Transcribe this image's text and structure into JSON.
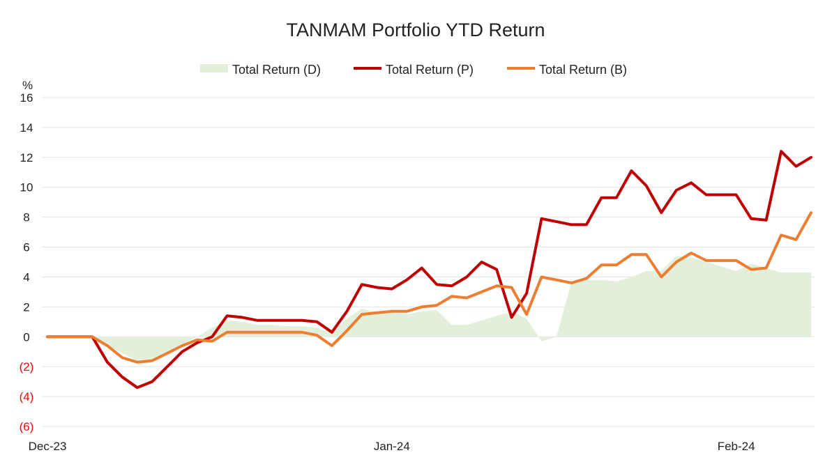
{
  "chart_data": {
    "type": "line",
    "title": "TANMAM Portfolio YTD Return",
    "ylabel": "%",
    "ylim": [
      -6,
      16
    ],
    "yticks": [
      -6,
      -4,
      -2,
      0,
      2,
      4,
      6,
      8,
      10,
      12,
      14,
      16
    ],
    "ytick_labels": [
      "(6)",
      "(4)",
      "(2)",
      "0",
      "2",
      "4",
      "6",
      "8",
      "10",
      "12",
      "14",
      "16"
    ],
    "negative_tick_color": "#ff0000",
    "grid": true,
    "legend_position": "top-center",
    "x_ticks": [
      {
        "label": "Dec-23",
        "index": 0
      },
      {
        "label": "Jan-24",
        "index": 23
      },
      {
        "label": "Feb-24",
        "index": 46
      }
    ],
    "x_count": 52,
    "series": [
      {
        "name": "Total Return (D)",
        "type": "area",
        "color": "#e2efda",
        "values": [
          0,
          0,
          0,
          0,
          -0.6,
          -1.1,
          -1.6,
          -1.5,
          -1.0,
          -0.5,
          0,
          0.6,
          1.1,
          1.0,
          0.8,
          0.8,
          0.7,
          0.7,
          0.6,
          0.3,
          1.2,
          1.9,
          1.6,
          1.6,
          1.5,
          1.7,
          1.8,
          0.8,
          0.8,
          1.1,
          1.4,
          1.7,
          1.2,
          -0.3,
          0,
          3.7,
          3.8,
          3.8,
          3.7,
          4.0,
          4.4,
          4.4,
          5.4,
          5.3,
          5.0,
          4.7,
          4.4,
          4.9,
          4.6,
          4.3,
          4.3,
          4.3
        ]
      },
      {
        "name": "Total Return (P)",
        "type": "line",
        "color": "#c00000",
        "values": [
          0,
          0,
          0,
          0,
          -1.7,
          -2.7,
          -3.4,
          -3.0,
          -2.0,
          -1.0,
          -0.4,
          0,
          1.4,
          1.3,
          1.1,
          1.1,
          1.1,
          1.1,
          1.0,
          0.3,
          1.7,
          3.5,
          3.3,
          3.2,
          3.8,
          4.6,
          3.5,
          3.4,
          4.0,
          5.0,
          4.5,
          1.3,
          2.9,
          7.9,
          7.7,
          7.5,
          7.5,
          9.3,
          9.3,
          11.1,
          10.1,
          8.3,
          9.8,
          10.3,
          9.5,
          9.5,
          9.5,
          7.9,
          7.8,
          12.4,
          11.4,
          12.0
        ]
      },
      {
        "name": "Total Return (B)",
        "type": "line",
        "color": "#ed7d31",
        "values": [
          0,
          0,
          0,
          0,
          -0.6,
          -1.4,
          -1.7,
          -1.6,
          -1.1,
          -0.6,
          -0.2,
          -0.3,
          0.3,
          0.3,
          0.3,
          0.3,
          0.3,
          0.3,
          0.1,
          -0.6,
          0.4,
          1.5,
          1.6,
          1.7,
          1.7,
          2.0,
          2.1,
          2.7,
          2.6,
          3.0,
          3.4,
          3.3,
          1.5,
          4.0,
          3.8,
          3.6,
          3.9,
          4.8,
          4.8,
          5.5,
          5.5,
          4.0,
          5.0,
          5.6,
          5.1,
          5.1,
          5.1,
          4.5,
          4.6,
          6.8,
          6.5,
          8.3
        ]
      }
    ]
  }
}
